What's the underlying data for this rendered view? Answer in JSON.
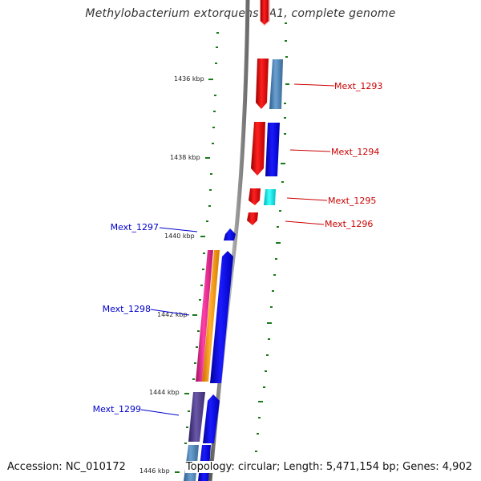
{
  "title": "Methylobacterium extorquens PA1, complete genome",
  "accession": "Accession: NC_010172",
  "summary": "Topology: circular; Length: 5,471,154 bp; Genes: 4,902",
  "ticks": [
    "1436 kbp",
    "1438 kbp",
    "1440 kbp",
    "1442 kbp",
    "1444 kbp",
    "1446 kbp"
  ],
  "labels": {
    "forward": [
      "Mext_1293",
      "Mext_1294",
      "Mext_1295",
      "Mext_1296"
    ],
    "reverse": [
      "Mext_1297",
      "Mext_1298",
      "Mext_1299"
    ]
  },
  "colors": {
    "forward_label": "#cc0000",
    "reverse_label": "#0000cc",
    "tick": "#1a7a1a",
    "backbone": "#888888",
    "red_gene": "#ee0000",
    "blue_gene": "#0000ee",
    "steelblue_gene": "#4a80b0",
    "cyan_gene": "#00e5e5",
    "magenta_gene": "#e0208a",
    "orange_gene": "#ff9000",
    "purple_gene": "#4a3a80"
  }
}
